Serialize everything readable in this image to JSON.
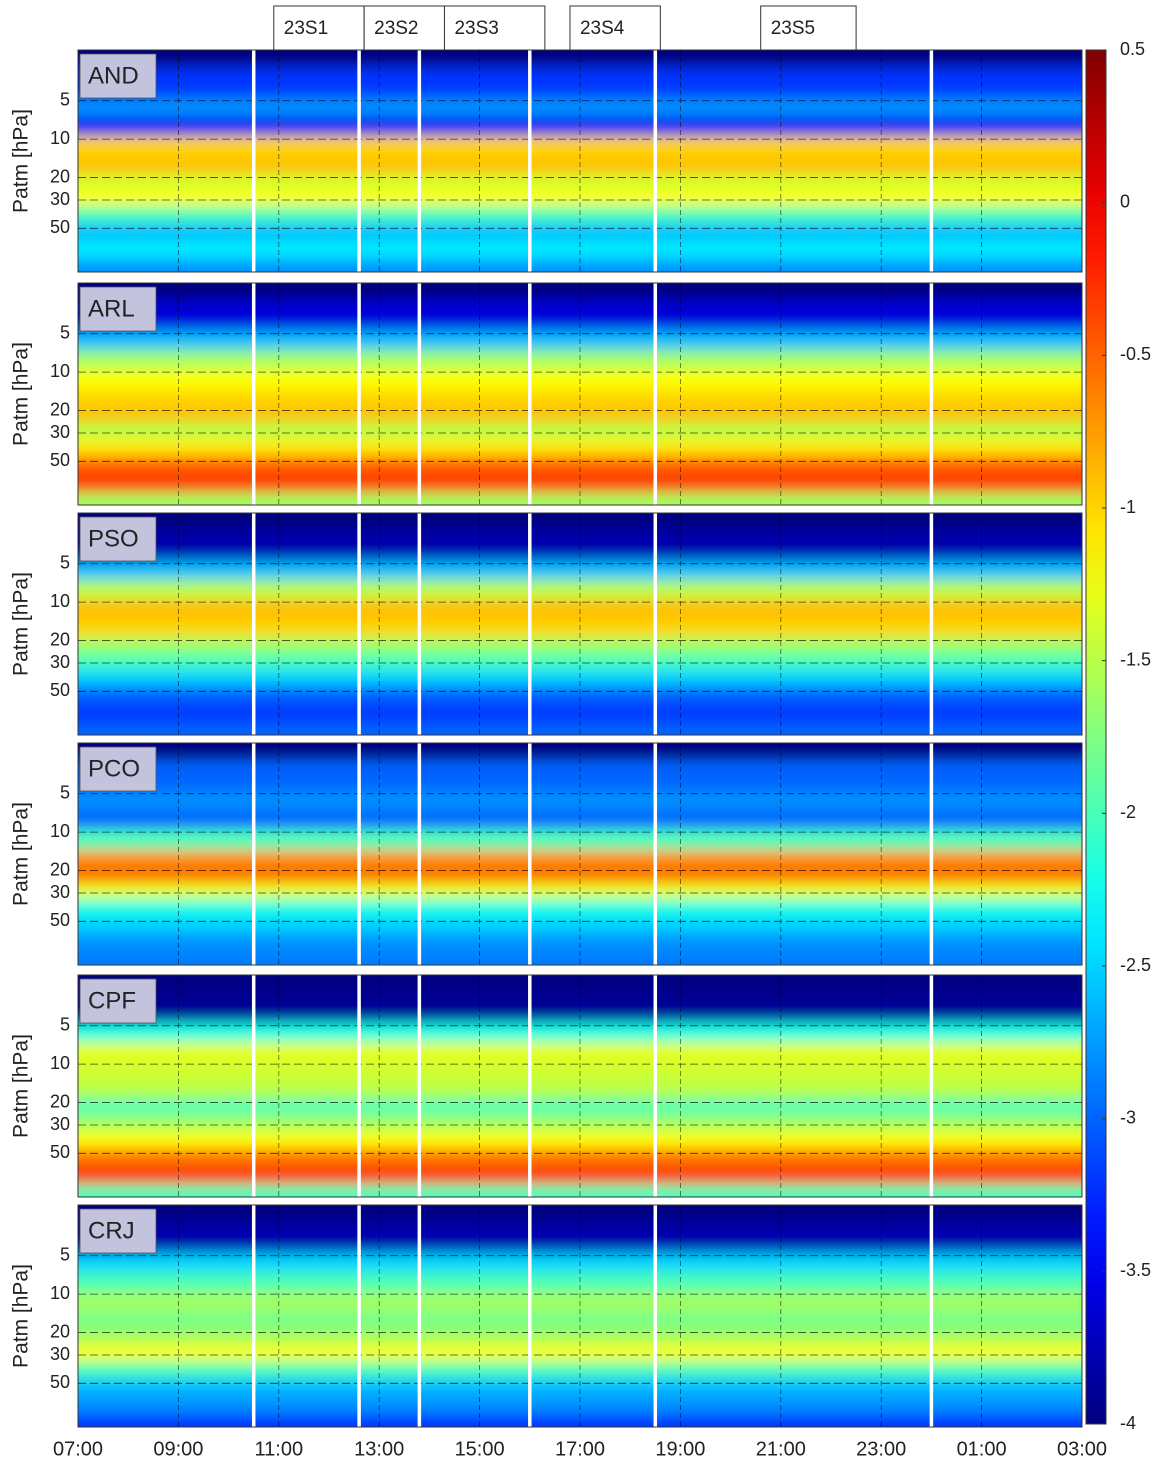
{
  "chart_data": [
    {
      "type": "heatmap",
      "title": "AND",
      "ylabel": "Patm [hPa]",
      "ylim": [
        2,
        110
      ],
      "yticks": [
        5,
        10,
        20,
        30,
        50
      ],
      "levels": [
        2,
        4,
        6,
        8,
        12,
        17,
        22,
        30,
        40,
        55,
        75,
        110
      ],
      "values": [
        -4,
        -3.2,
        -2.8,
        -3.5,
        -1.0,
        -0.9,
        -1.4,
        -1.2,
        -2.0,
        -2.6,
        -2.4,
        -2.8
      ]
    },
    {
      "type": "heatmap",
      "title": "ARL",
      "ylabel": "Patm [hPa]",
      "ylim": [
        2,
        110
      ],
      "yticks": [
        5,
        10,
        20,
        30,
        50
      ],
      "levels": [
        2,
        4,
        6,
        8,
        12,
        17,
        22,
        30,
        40,
        55,
        75,
        110
      ],
      "values": [
        -4,
        -3.6,
        -2.6,
        -1.6,
        -1.2,
        -1.0,
        -0.9,
        -1.5,
        -1.1,
        -0.5,
        -0.3,
        -1.6
      ]
    },
    {
      "type": "heatmap",
      "title": "PSO",
      "ylabel": "Patm [hPa]",
      "ylim": [
        2,
        110
      ],
      "yticks": [
        5,
        10,
        20,
        30,
        50
      ],
      "levels": [
        2,
        4,
        6,
        8,
        12,
        17,
        22,
        30,
        40,
        55,
        75,
        110
      ],
      "values": [
        -4,
        -3.8,
        -2.6,
        -1.5,
        -0.9,
        -1.0,
        -1.6,
        -2.0,
        -2.5,
        -3.0,
        -3.2,
        -3.0
      ]
    },
    {
      "type": "heatmap",
      "title": "PCO",
      "ylabel": "Patm [hPa]",
      "ylim": [
        2,
        110
      ],
      "yticks": [
        5,
        10,
        20,
        30,
        50
      ],
      "levels": [
        2,
        4,
        6,
        8,
        12,
        17,
        22,
        30,
        40,
        55,
        75,
        110
      ],
      "values": [
        -4,
        -3.0,
        -2.8,
        -3.0,
        -2.0,
        -0.7,
        -0.5,
        -1.3,
        -2.2,
        -2.5,
        -2.8,
        -2.9
      ]
    },
    {
      "type": "heatmap",
      "title": "CPF",
      "ylabel": "Patm [hPa]",
      "ylim": [
        2,
        110
      ],
      "yticks": [
        5,
        10,
        20,
        30,
        50
      ],
      "levels": [
        2,
        4,
        6,
        8,
        12,
        17,
        22,
        30,
        40,
        55,
        75,
        110
      ],
      "values": [
        -4,
        -3.9,
        -2.2,
        -1.3,
        -1.4,
        -1.5,
        -2.0,
        -1.6,
        -1.2,
        -0.6,
        -0.3,
        -2.0
      ]
    },
    {
      "type": "heatmap",
      "title": "CRJ",
      "ylabel": "Patm [hPa]",
      "ylim": [
        2,
        110
      ],
      "yticks": [
        5,
        10,
        20,
        30,
        50
      ],
      "levels": [
        2,
        4,
        6,
        8,
        12,
        17,
        22,
        30,
        40,
        55,
        75,
        110
      ],
      "values": [
        -4,
        -3.8,
        -2.5,
        -2.0,
        -1.6,
        -1.8,
        -1.6,
        -1.2,
        -2.0,
        -2.6,
        -2.8,
        -3.2
      ]
    }
  ],
  "x_axis": {
    "xlim": [
      7,
      27
    ],
    "xticks": [
      {
        "value": 7,
        "label": "07:00"
      },
      {
        "value": 9,
        "label": "09:00"
      },
      {
        "value": 11,
        "label": "11:00"
      },
      {
        "value": 13,
        "label": "13:00"
      },
      {
        "value": 15,
        "label": "15:00"
      },
      {
        "value": 17,
        "label": "17:00"
      },
      {
        "value": 19,
        "label": "19:00"
      },
      {
        "value": 21,
        "label": "21:00"
      },
      {
        "value": 23,
        "label": "23:00"
      },
      {
        "value": 25,
        "label": "01:00"
      },
      {
        "value": 27,
        "label": "03:00"
      }
    ]
  },
  "boundaries": [
    10.5,
    12.6,
    13.8,
    16.0,
    18.5,
    24.0
  ],
  "sessions": [
    {
      "label": "23S1",
      "start": 10.9,
      "end": 12.7
    },
    {
      "label": "23S2",
      "start": 12.7,
      "end": 14.3
    },
    {
      "label": "23S3",
      "start": 14.3,
      "end": 16.3
    },
    {
      "label": "23S4",
      "start": 16.8,
      "end": 18.6
    },
    {
      "label": "23S5",
      "start": 20.6,
      "end": 22.5
    }
  ],
  "colorbar": {
    "clim": [
      -4,
      0.5
    ],
    "ticks": [
      0.5,
      0,
      -0.5,
      -1,
      -1.5,
      -2,
      -2.5,
      -3,
      -3.5,
      -4
    ]
  }
}
